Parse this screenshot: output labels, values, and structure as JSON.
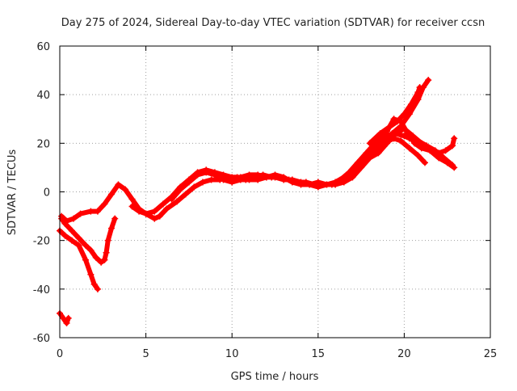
{
  "chart_data": {
    "type": "scatter",
    "title": "Day 275 of 2024, Sidereal Day-to-day VTEC variation (SDTVAR) for receiver ccsn",
    "xlabel": "GPS time / hours",
    "ylabel": "SDTVAR / TECUs",
    "xlim": [
      0,
      25
    ],
    "ylim": [
      -60,
      60
    ],
    "xticks": [
      "0",
      "5",
      "10",
      "15",
      "20",
      "25"
    ],
    "yticks": [
      "-60",
      "-40",
      "-20",
      "0",
      "20",
      "40",
      "60"
    ],
    "grid": true,
    "marker": "plus",
    "color": "#ff0000",
    "series": [
      {
        "name": "arc-1",
        "points": [
          [
            0.1,
            -10
          ],
          [
            0.4,
            -12
          ],
          [
            0.8,
            -11
          ],
          [
            1.2,
            -9
          ],
          [
            1.8,
            -8
          ],
          [
            2.2,
            -8
          ],
          [
            2.6,
            -5
          ],
          [
            3.0,
            -1
          ],
          [
            3.4,
            3
          ],
          [
            3.8,
            1
          ],
          [
            4.2,
            -3
          ],
          [
            4.6,
            -7
          ],
          [
            5.0,
            -9
          ],
          [
            5.5,
            -11
          ],
          [
            5.8,
            -10
          ],
          [
            6.2,
            -7
          ],
          [
            6.8,
            -4
          ],
          [
            7.3,
            -1
          ],
          [
            7.8,
            2
          ],
          [
            8.3,
            4
          ],
          [
            8.8,
            5
          ],
          [
            9.3,
            5
          ],
          [
            9.8,
            6
          ],
          [
            10.3,
            6
          ],
          [
            10.8,
            5
          ],
          [
            11.3,
            6
          ],
          [
            11.8,
            7
          ],
          [
            12.3,
            6
          ],
          [
            12.8,
            6
          ],
          [
            13.3,
            5
          ],
          [
            13.8,
            4
          ],
          [
            14.3,
            4
          ],
          [
            14.8,
            3
          ],
          [
            15.3,
            3
          ],
          [
            15.8,
            3
          ],
          [
            16.3,
            5
          ],
          [
            16.8,
            8
          ],
          [
            17.3,
            12
          ],
          [
            17.8,
            16
          ],
          [
            18.3,
            20
          ],
          [
            18.8,
            22
          ],
          [
            19.3,
            24
          ],
          [
            19.8,
            27
          ],
          [
            20.3,
            32
          ],
          [
            20.8,
            38
          ],
          [
            21.1,
            43
          ],
          [
            21.4,
            46
          ]
        ]
      },
      {
        "name": "arc-2",
        "points": [
          [
            0.1,
            -11
          ],
          [
            0.3,
            -13
          ],
          [
            0.7,
            -16
          ],
          [
            1.1,
            -19
          ],
          [
            1.5,
            -22
          ],
          [
            1.8,
            -24
          ],
          [
            2.1,
            -27
          ],
          [
            2.4,
            -29
          ],
          [
            2.6,
            -28
          ],
          [
            2.7,
            -25
          ],
          [
            2.8,
            -20
          ],
          [
            3.0,
            -15
          ],
          [
            3.2,
            -11
          ]
        ]
      },
      {
        "name": "arc-3",
        "points": [
          [
            0.0,
            -16
          ],
          [
            0.3,
            -18
          ],
          [
            0.7,
            -20
          ],
          [
            1.1,
            -22
          ],
          [
            1.5,
            -28
          ],
          [
            1.8,
            -34
          ],
          [
            2.0,
            -38
          ],
          [
            2.2,
            -40
          ]
        ]
      },
      {
        "name": "arc-4",
        "points": [
          [
            0.0,
            -50
          ],
          [
            0.2,
            -52
          ],
          [
            0.4,
            -54
          ],
          [
            0.5,
            -52
          ]
        ]
      },
      {
        "name": "arc-5",
        "points": [
          [
            4.2,
            -6
          ],
          [
            4.6,
            -8
          ],
          [
            5.0,
            -9
          ],
          [
            5.5,
            -8
          ],
          [
            6.0,
            -5
          ],
          [
            6.5,
            -2
          ],
          [
            7.0,
            2
          ],
          [
            7.5,
            5
          ],
          [
            8.0,
            8
          ],
          [
            8.5,
            9
          ],
          [
            9.0,
            8
          ],
          [
            9.5,
            7
          ],
          [
            10.0,
            6
          ],
          [
            10.5,
            6
          ],
          [
            11.0,
            7
          ],
          [
            11.5,
            7
          ],
          [
            12.0,
            6
          ],
          [
            12.5,
            7
          ],
          [
            13.0,
            6
          ],
          [
            13.5,
            4
          ],
          [
            14.0,
            3
          ],
          [
            14.5,
            3
          ],
          [
            15.0,
            4
          ],
          [
            15.5,
            3
          ],
          [
            16.0,
            4
          ],
          [
            16.5,
            6
          ],
          [
            17.0,
            9
          ],
          [
            17.5,
            13
          ],
          [
            18.0,
            17
          ],
          [
            18.5,
            21
          ],
          [
            19.0,
            25
          ],
          [
            19.4,
            30
          ],
          [
            19.8,
            29
          ],
          [
            20.2,
            24
          ],
          [
            20.6,
            20
          ],
          [
            21.0,
            18
          ],
          [
            21.5,
            17
          ],
          [
            22.0,
            16
          ],
          [
            22.4,
            17
          ],
          [
            22.8,
            19
          ],
          [
            22.9,
            22
          ]
        ]
      },
      {
        "name": "arc-6",
        "points": [
          [
            6.5,
            -3
          ],
          [
            7.0,
            1
          ],
          [
            7.5,
            4
          ],
          [
            8.0,
            7
          ],
          [
            8.5,
            8
          ],
          [
            9.0,
            7
          ],
          [
            9.5,
            5
          ],
          [
            10.0,
            4
          ],
          [
            10.5,
            5
          ],
          [
            11.0,
            5
          ],
          [
            11.5,
            5
          ],
          [
            12.0,
            6
          ],
          [
            12.5,
            6
          ],
          [
            13.0,
            5
          ],
          [
            13.5,
            5
          ],
          [
            14.0,
            4
          ],
          [
            14.5,
            3
          ],
          [
            15.0,
            2
          ],
          [
            15.5,
            3
          ],
          [
            16.0,
            3
          ],
          [
            16.5,
            4
          ],
          [
            17.0,
            6
          ],
          [
            17.5,
            10
          ],
          [
            18.0,
            14
          ],
          [
            18.5,
            16
          ],
          [
            19.0,
            20
          ],
          [
            19.5,
            24
          ],
          [
            20.0,
            26
          ],
          [
            20.5,
            23
          ],
          [
            21.0,
            20
          ],
          [
            21.5,
            17
          ],
          [
            22.0,
            14
          ],
          [
            22.5,
            12
          ],
          [
            22.9,
            10
          ]
        ]
      },
      {
        "name": "arc-7",
        "points": [
          [
            16.5,
            5
          ],
          [
            17.0,
            8
          ],
          [
            17.5,
            11
          ],
          [
            18.0,
            15
          ],
          [
            18.5,
            18
          ],
          [
            19.0,
            22
          ],
          [
            19.5,
            24
          ],
          [
            20.0,
            23
          ],
          [
            20.3,
            22
          ],
          [
            20.8,
            21
          ],
          [
            21.3,
            19
          ],
          [
            21.8,
            17
          ],
          [
            22.3,
            14
          ],
          [
            22.8,
            11
          ]
        ]
      },
      {
        "name": "arc-8",
        "points": [
          [
            17.0,
            7
          ],
          [
            17.6,
            12
          ],
          [
            18.2,
            17
          ],
          [
            18.8,
            20
          ],
          [
            19.4,
            22
          ],
          [
            19.8,
            21
          ],
          [
            20.3,
            18
          ],
          [
            20.8,
            15
          ],
          [
            21.2,
            12
          ]
        ]
      },
      {
        "name": "arc-9",
        "points": [
          [
            18.0,
            20
          ],
          [
            18.6,
            24
          ],
          [
            19.2,
            27
          ],
          [
            19.6,
            29
          ],
          [
            20.0,
            32
          ],
          [
            20.4,
            36
          ],
          [
            20.8,
            41
          ],
          [
            20.9,
            43
          ]
        ]
      }
    ]
  }
}
